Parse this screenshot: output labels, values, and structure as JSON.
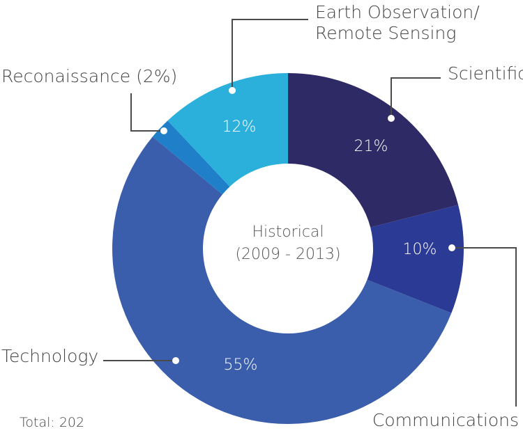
{
  "chart_data": {
    "type": "pie",
    "donut": true,
    "center_label": [
      "Historical",
      "(2009 - 2013)"
    ],
    "total_label": "Total: 202",
    "slices": [
      {
        "name": "Scientific",
        "value": 21,
        "pct_label": "21%",
        "color": "#2e2a66"
      },
      {
        "name": "Communications",
        "value": 10,
        "pct_label": "10%",
        "color": "#2b3a94"
      },
      {
        "name": "Technology",
        "value": 55,
        "pct_label": "55%",
        "color": "#3a5eab"
      },
      {
        "name": "Reconaissance (2%)",
        "value": 2,
        "pct_label": "",
        "color": "#1f80c9"
      },
      {
        "name": "Earth Observation/ Remote Sensing",
        "name_lines": [
          "Earth Observation/",
          "Remote Sensing"
        ],
        "value": 12,
        "pct_label": "12%",
        "color": "#2bb0dc"
      }
    ]
  }
}
